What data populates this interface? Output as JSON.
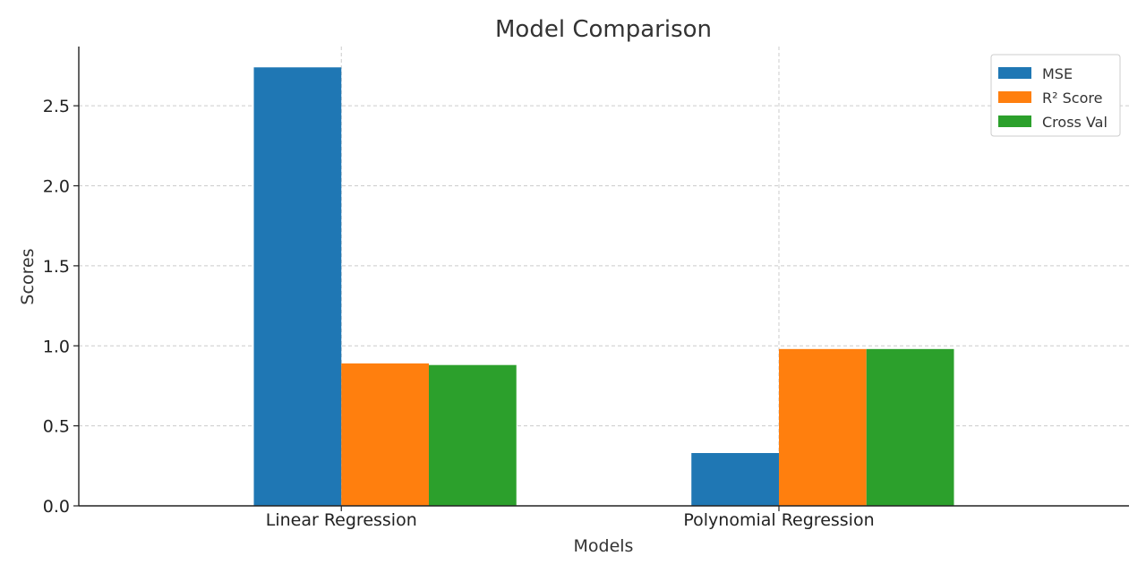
{
  "chart_data": {
    "type": "bar",
    "title": "Model Comparison",
    "xlabel": "Models",
    "ylabel": "Scores",
    "categories": [
      "Linear Regression",
      "Polynomial Regression"
    ],
    "series": [
      {
        "name": "MSE",
        "color": "#1f77b4",
        "values": [
          2.74,
          0.33
        ]
      },
      {
        "name": "R² Score",
        "color": "#ff7f0e",
        "values": [
          0.89,
          0.98
        ]
      },
      {
        "name": "Cross Val",
        "color": "#2ca02c",
        "values": [
          0.88,
          0.98
        ]
      }
    ],
    "ylim": [
      0,
      2.87
    ],
    "yticks": [
      0.0,
      0.5,
      1.0,
      1.5,
      2.0,
      2.5
    ],
    "ytick_labels": [
      "0.0",
      "0.5",
      "1.0",
      "1.5",
      "2.0",
      "2.5"
    ],
    "grid": true,
    "legend_position": "top-right"
  }
}
